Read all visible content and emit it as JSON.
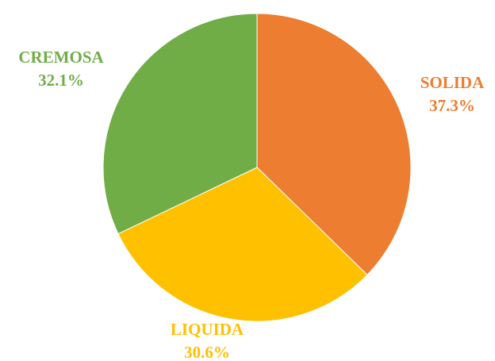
{
  "chart_data": {
    "type": "pie",
    "title": "",
    "slices": [
      {
        "label": "SOLIDA",
        "value": 37.3,
        "value_label": "37.3%",
        "color": "#ED7D31"
      },
      {
        "label": "LIQUIDA",
        "value": 30.6,
        "value_label": "30.6%",
        "color": "#FFC000"
      },
      {
        "label": "CREMOSA",
        "value": 32.1,
        "value_label": "32.1%",
        "color": "#70AD47"
      }
    ],
    "start_angle": "12 o'clock",
    "direction": "clockwise",
    "legend": "none"
  }
}
